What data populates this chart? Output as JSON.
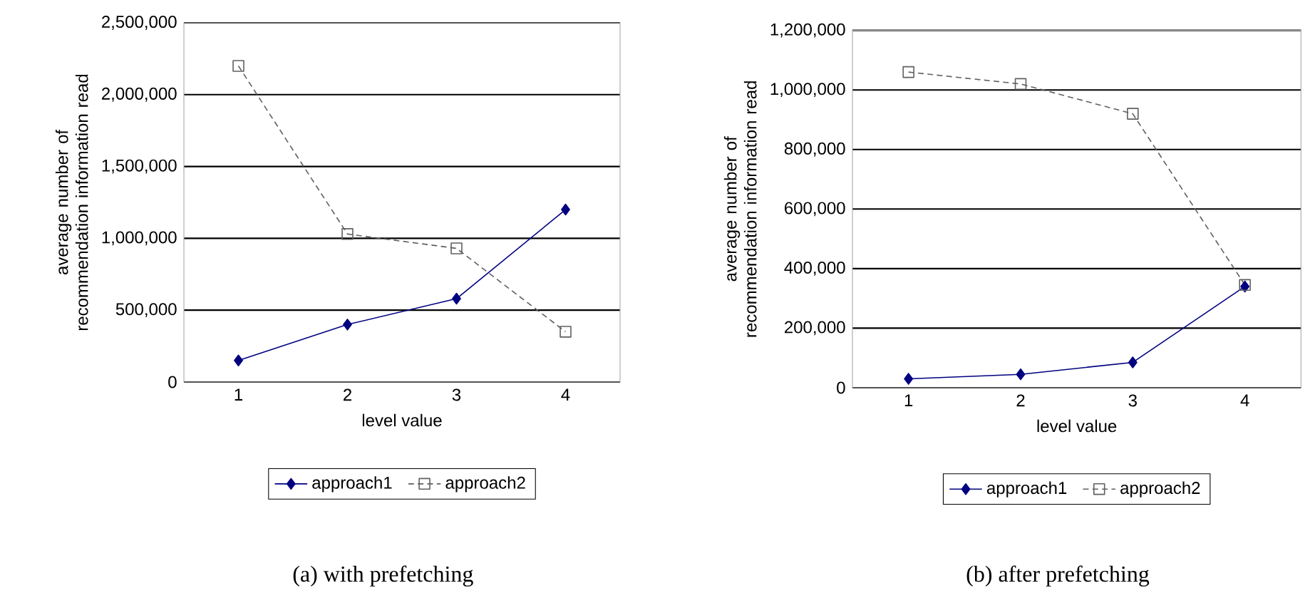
{
  "chart_data": [
    {
      "type": "line",
      "categories": [
        "1",
        "2",
        "3",
        "4"
      ],
      "series": [
        {
          "name": "approach1",
          "color": "#000080",
          "values": [
            150000,
            400000,
            580000,
            1200000
          ],
          "marker": "diamond",
          "line_style": "solid"
        },
        {
          "name": "approach2",
          "color": "#606060",
          "values": [
            2200000,
            1030000,
            930000,
            350000
          ],
          "marker": "square",
          "line_style": "dashed"
        }
      ],
      "ylim": [
        0,
        2500000
      ],
      "yticks": [
        0,
        {
          "value": 500000,
          "label": "500,000"
        },
        {
          "value": 1000000,
          "label": "1,000,000"
        },
        {
          "value": 1500000,
          "label": "1,500,000"
        },
        {
          "value": 2000000,
          "label": "2,000,000"
        },
        {
          "value": 2500000,
          "label": "2,500,000"
        }
      ],
      "grid": "y",
      "legend": "bottom",
      "xlabel": "level value",
      "ylabel": "average number of recommendation information read",
      "annotations": [
        "(a) with prefetching"
      ]
    },
    {
      "type": "line",
      "categories": [
        "1",
        "2",
        "3",
        "4"
      ],
      "series": [
        {
          "name": "approach1",
          "color": "#000080",
          "values": [
            30000,
            45000,
            85000,
            340000
          ],
          "marker": "diamond",
          "line_style": "solid"
        },
        {
          "name": "approach2",
          "color": "#606060",
          "values": [
            1060000,
            1020000,
            920000,
            345000
          ],
          "marker": "square",
          "line_style": "dashed"
        }
      ],
      "ylim": [
        0,
        1200000
      ],
      "yticks": [
        0,
        {
          "value": 200000,
          "label": "200,000"
        },
        {
          "value": 400000,
          "label": "400,000"
        },
        {
          "value": 600000,
          "label": "600,000"
        },
        {
          "value": 800000,
          "label": "800,000"
        },
        {
          "value": 1000000,
          "label": "1,000,000"
        },
        {
          "value": 1200000,
          "label": "1,200,000"
        }
      ],
      "grid": "y",
      "legend": "bottom",
      "xlabel": "level value",
      "ylabel": "average number of recommendation information read",
      "annotations": [
        "(b) after prefetching"
      ]
    }
  ]
}
